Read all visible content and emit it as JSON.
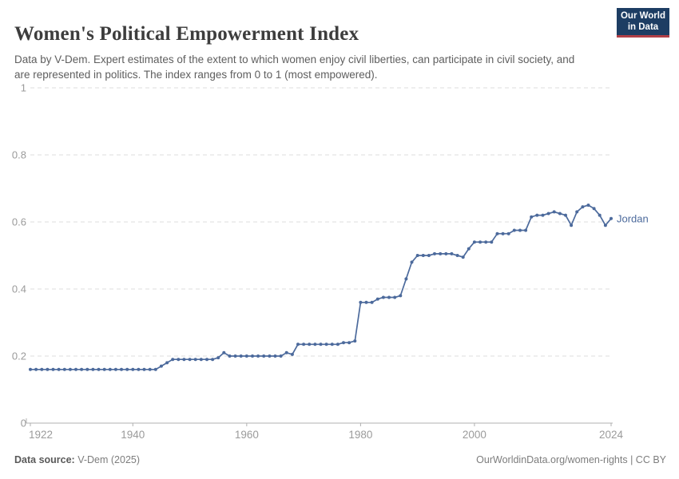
{
  "header": {
    "title": "Women's Political Empowerment Index",
    "subtitle": "Data by V-Dem. Expert estimates of the extent to which women enjoy civil liberties, can participate in civil society, and are represented in politics. The index ranges from 0 to 1 (most empowered).",
    "logo": {
      "line1": "Our World",
      "line2": "in Data",
      "bg_color": "#1d3d63",
      "accent_color": "#b13f47"
    }
  },
  "chart_data": {
    "type": "line",
    "title": "Women's Political Empowerment Index",
    "xlabel": "",
    "ylabel": "",
    "xlim": [
      1922,
      2024
    ],
    "ylim": [
      0,
      1
    ],
    "x_ticks": [
      1922,
      1940,
      1960,
      1980,
      2000,
      2024
    ],
    "y_ticks": [
      0,
      0.2,
      0.4,
      0.6,
      0.8,
      1
    ],
    "grid": "horizontal-dashed",
    "legend_position": "end-of-line-label",
    "end_label": "Jordan",
    "line_color": "#4c6a9c",
    "grid_color": "#dcdcdc",
    "axis_color": "#b0b0b0",
    "tick_label_color": "#9b9b9b",
    "series": [
      {
        "name": "Jordan",
        "color": "#4c6a9c",
        "x": [
          1922,
          1923,
          1924,
          1925,
          1926,
          1927,
          1928,
          1929,
          1930,
          1931,
          1932,
          1933,
          1934,
          1935,
          1936,
          1937,
          1938,
          1939,
          1940,
          1941,
          1942,
          1943,
          1944,
          1945,
          1946,
          1947,
          1948,
          1949,
          1950,
          1951,
          1952,
          1953,
          1954,
          1955,
          1956,
          1957,
          1958,
          1959,
          1960,
          1961,
          1962,
          1963,
          1964,
          1965,
          1966,
          1967,
          1968,
          1969,
          1970,
          1971,
          1972,
          1973,
          1974,
          1975,
          1976,
          1977,
          1978,
          1979,
          1980,
          1981,
          1982,
          1983,
          1984,
          1985,
          1986,
          1987,
          1988,
          1989,
          1990,
          1991,
          1992,
          1993,
          1994,
          1995,
          1996,
          1997,
          1998,
          1999,
          2000,
          2001,
          2002,
          2003,
          2004,
          2005,
          2006,
          2007,
          2008,
          2009,
          2010,
          2011,
          2012,
          2013,
          2014,
          2015,
          2016,
          2017,
          2018,
          2019,
          2020,
          2021,
          2022,
          2023,
          2024
        ],
        "values": [
          0.16,
          0.16,
          0.16,
          0.16,
          0.16,
          0.16,
          0.16,
          0.16,
          0.16,
          0.16,
          0.16,
          0.16,
          0.16,
          0.16,
          0.16,
          0.16,
          0.16,
          0.16,
          0.16,
          0.16,
          0.16,
          0.16,
          0.16,
          0.17,
          0.18,
          0.19,
          0.19,
          0.19,
          0.19,
          0.19,
          0.19,
          0.19,
          0.19,
          0.195,
          0.21,
          0.2,
          0.2,
          0.2,
          0.2,
          0.2,
          0.2,
          0.2,
          0.2,
          0.2,
          0.2,
          0.21,
          0.205,
          0.235,
          0.235,
          0.235,
          0.235,
          0.235,
          0.235,
          0.235,
          0.235,
          0.24,
          0.24,
          0.245,
          0.36,
          0.36,
          0.36,
          0.37,
          0.375,
          0.375,
          0.375,
          0.38,
          0.43,
          0.48,
          0.5,
          0.5,
          0.5,
          0.505,
          0.505,
          0.505,
          0.505,
          0.5,
          0.495,
          0.52,
          0.54,
          0.54,
          0.54,
          0.54,
          0.565,
          0.565,
          0.565,
          0.575,
          0.575,
          0.575,
          0.615,
          0.62,
          0.62,
          0.625,
          0.63,
          0.625,
          0.62,
          0.59,
          0.63,
          0.645,
          0.65,
          0.64,
          0.62,
          0.59,
          0.61
        ]
      }
    ]
  },
  "footer": {
    "source_label": "Data source:",
    "source_value": " V-Dem (2025)",
    "link": "OurWorldinData.org/women-rights | CC BY"
  }
}
